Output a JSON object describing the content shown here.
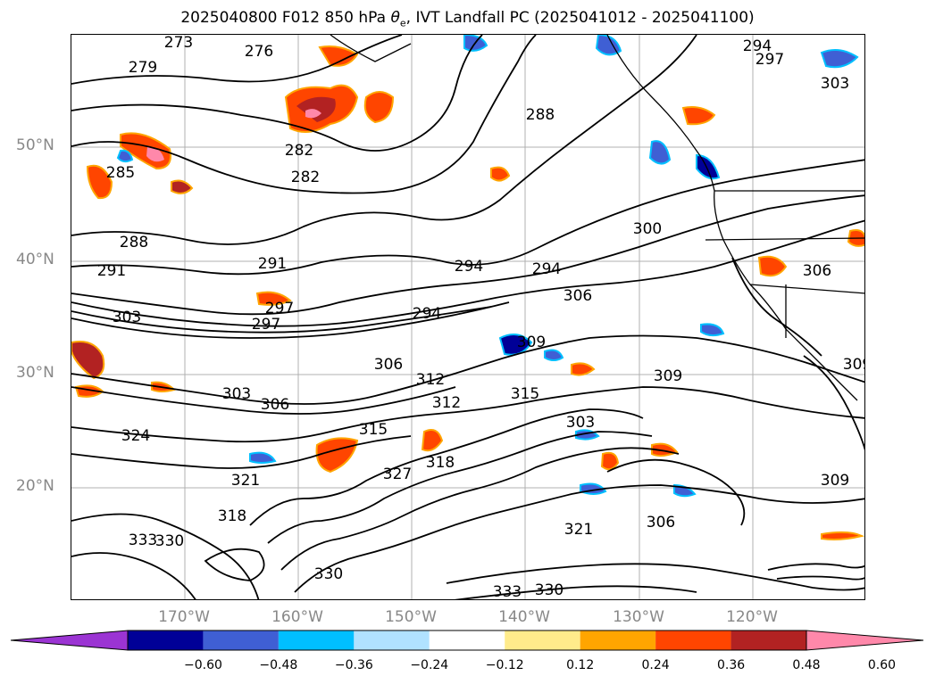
{
  "title": {
    "prefix": "2025040800 F012 850 hPa ",
    "theta": "θ",
    "sub": "e",
    "suffix": ", IVT Landfall PC (2025041012 - 2025041100)"
  },
  "axes": {
    "lat_labels": [
      "50°N",
      "40°N",
      "30°N",
      "20°N"
    ],
    "lon_labels": [
      "170°W",
      "160°W",
      "150°W",
      "140°W",
      "130°W",
      "120°W"
    ]
  },
  "colorbar": {
    "ticks": [
      "−0.60",
      "−0.48",
      "−0.36",
      "−0.24",
      "−0.12",
      "0.12",
      "0.24",
      "0.36",
      "0.48",
      "0.60"
    ],
    "colors": [
      "#9b34d3",
      "#000097",
      "#3f5fd4",
      "#00bfff",
      "#b0e2ff",
      "#ffffff",
      "#ffeb8b",
      "#ffa500",
      "#ff4500",
      "#b22222",
      "#ff88aa"
    ]
  },
  "contour_labels": [
    "273",
    "276",
    "279",
    "285",
    "282",
    "282",
    "288",
    "291",
    "291",
    "294",
    "294",
    "294",
    "297",
    "297",
    "300",
    "303",
    "303",
    "303",
    "306",
    "306",
    "306",
    "306",
    "309",
    "309",
    "309",
    "309",
    "312",
    "312",
    "315",
    "315",
    "318",
    "318",
    "321",
    "321",
    "324",
    "327",
    "330",
    "330",
    "330",
    "333",
    "333",
    "288",
    "297",
    "294",
    "306",
    "303"
  ]
}
